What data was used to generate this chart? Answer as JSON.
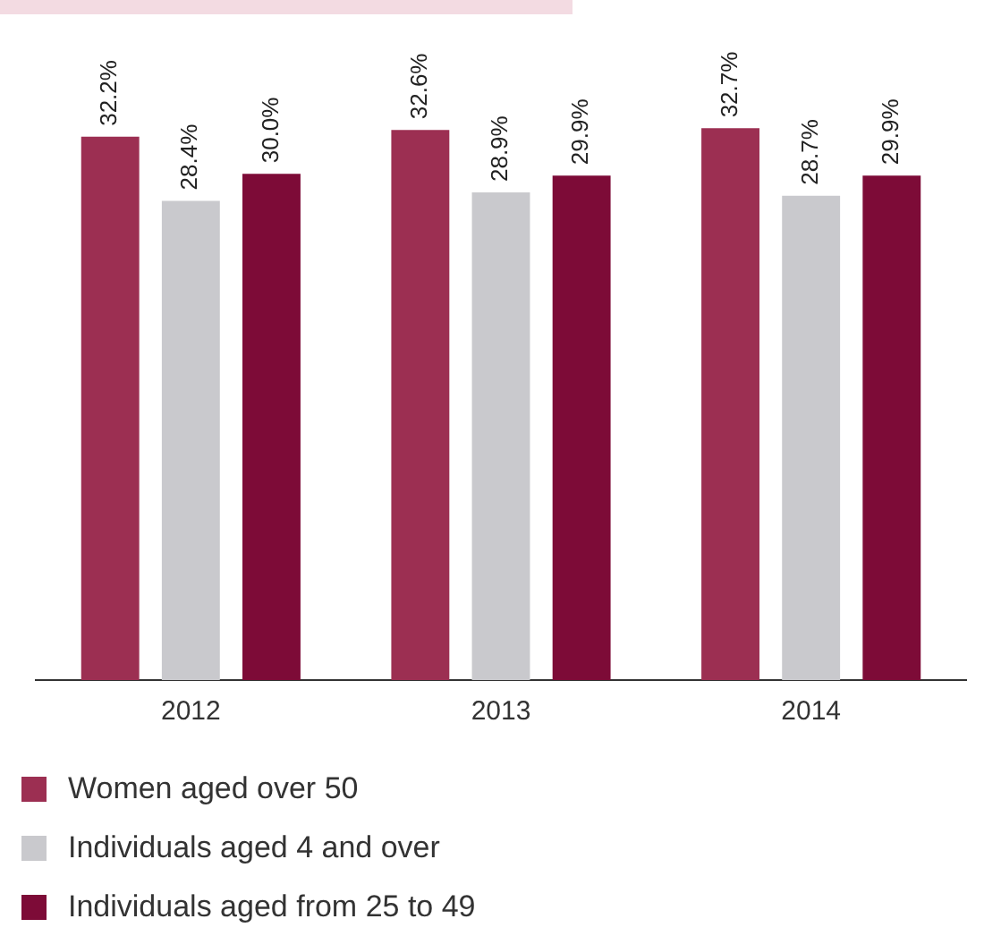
{
  "chart_data": {
    "type": "bar",
    "categories": [
      "2012",
      "2013",
      "2014"
    ],
    "series": [
      {
        "name": "Women aged over 50",
        "color": "#9c2f52",
        "values": [
          32.2,
          32.6,
          32.7
        ],
        "value_labels": [
          "32.2%",
          "32.6%",
          "32.7%"
        ]
      },
      {
        "name": "Individuals aged 4 and over",
        "color": "#c9c9cd",
        "values": [
          28.4,
          28.9,
          28.7
        ],
        "value_labels": [
          "28.4%",
          "28.9%",
          "28.7%"
        ]
      },
      {
        "name": "Individuals aged from 25 to 49",
        "color": "#7d0b37",
        "values": [
          30.0,
          29.9,
          29.9
        ],
        "value_labels": [
          "30.0%",
          "29.9%",
          "29.9%"
        ]
      }
    ],
    "grid": false,
    "legend": "bottom left"
  }
}
